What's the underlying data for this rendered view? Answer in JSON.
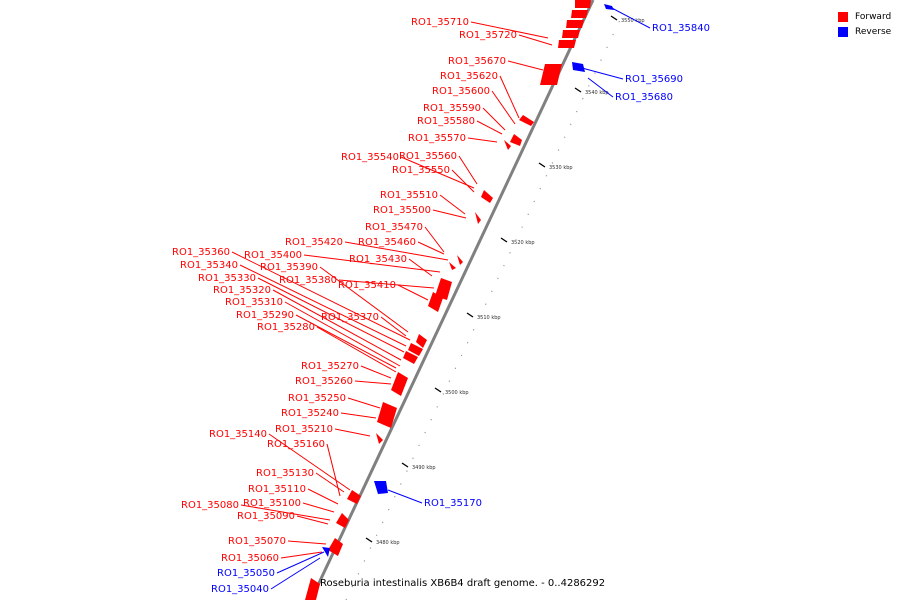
{
  "colors": {
    "forward": "#ff0000",
    "reverse": "#0000ff",
    "axis": "#808080",
    "tick": "#000000"
  },
  "legend": [
    {
      "label": "Forward",
      "color": "#ff0000"
    },
    {
      "label": "Reverse",
      "color": "#0000ff"
    }
  ],
  "caption": "Roseburia intestinalis XB6B4 draft genome. - 0..4286292",
  "ticks": [
    "3480 kbp",
    "3490 kbp",
    "3500 kbp",
    "3510 kbp",
    "3520 kbp",
    "3530 kbp",
    "3540 kbp",
    "3550 kbp"
  ],
  "labels": {
    "forward": [
      "RO1_35710",
      "RO1_35720",
      "RO1_35670",
      "RO1_35620",
      "RO1_35600",
      "RO1_35590",
      "RO1_35580",
      "RO1_35570",
      "RO1_35540",
      "RO1_35560",
      "RO1_35550",
      "RO1_35510",
      "RO1_35500",
      "RO1_35470",
      "RO1_35420",
      "RO1_35460",
      "RO1_35360",
      "RO1_35400",
      "RO1_35340",
      "RO1_35390",
      "RO1_35330",
      "RO1_35380",
      "RO1_35320",
      "RO1_35410",
      "RO1_35310",
      "RO1_35290",
      "RO1_35370",
      "RO1_35280",
      "RO1_35270",
      "RO1_35260",
      "RO1_35250",
      "RO1_35240",
      "RO1_35210",
      "RO1_35140",
      "RO1_35160",
      "RO1_35430",
      "RO1_35130",
      "RO1_35110",
      "RO1_35100",
      "RO1_35080",
      "RO1_35090",
      "RO1_35070",
      "RO1_35060"
    ],
    "reverse": [
      "RO1_35840",
      "RO1_35690",
      "RO1_35680",
      "RO1_35170",
      "RO1_35050",
      "RO1_35040"
    ]
  }
}
